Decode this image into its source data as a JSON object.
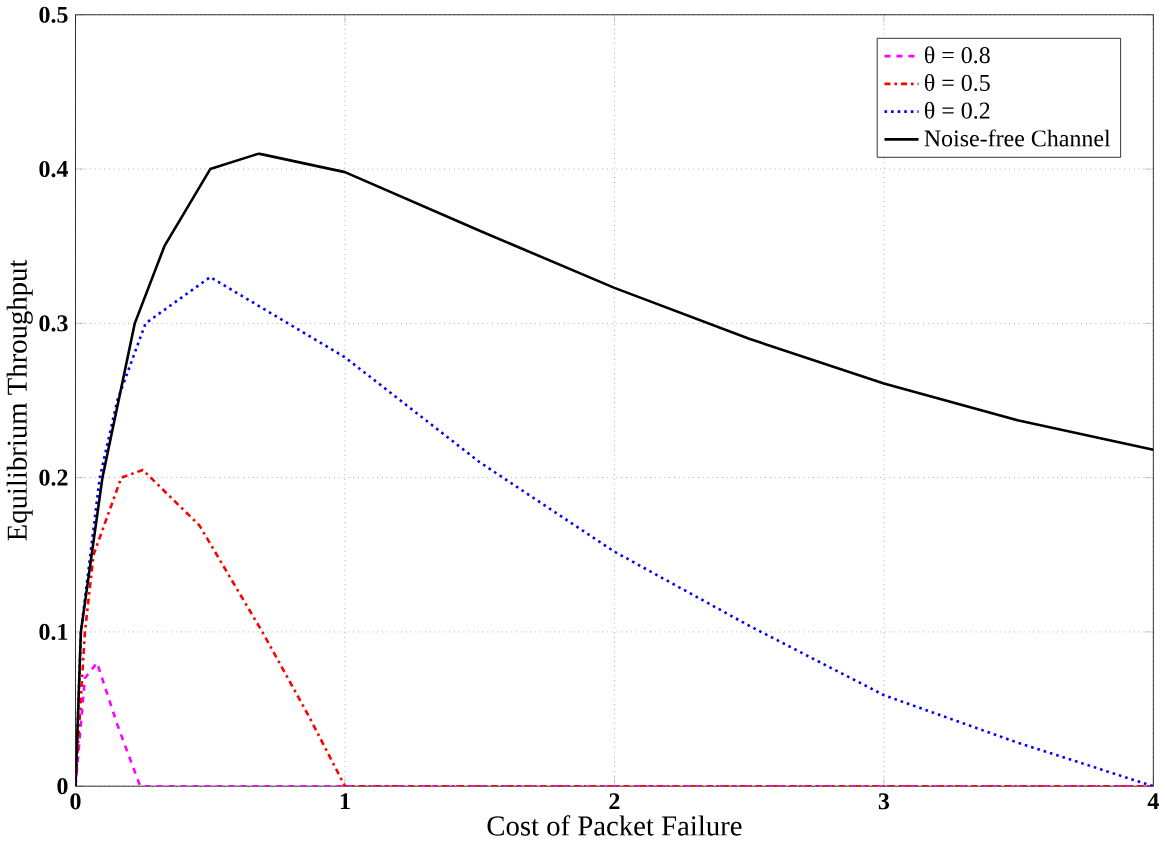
{
  "chart_data": {
    "type": "line",
    "xlabel": "Cost of Packet Failure",
    "ylabel": "Equilibrium Throughput",
    "xlim": [
      0,
      4
    ],
    "ylim": [
      0,
      0.5
    ],
    "xticks": [
      0,
      1,
      2,
      3,
      4
    ],
    "yticks": [
      0,
      0.1,
      0.2,
      0.3,
      0.4,
      0.5
    ],
    "grid": true,
    "legend": "top right",
    "series": [
      {
        "name": "θ = 0.8",
        "color": "#ff00ff",
        "line_style": "dashed",
        "x": [
          0,
          0.035,
          0.08,
          0.155,
          0.24,
          1,
          2,
          3,
          4
        ],
        "values": [
          0,
          0.07,
          0.08,
          0.04,
          0,
          0,
          0,
          0,
          0
        ]
      },
      {
        "name": "θ = 0.5",
        "color": "#ff0000",
        "line_style": "dashdot",
        "x": [
          0,
          0.035,
          0.067,
          0.17,
          0.25,
          0.46,
          0.7,
          0.87,
          1,
          2,
          3,
          4
        ],
        "values": [
          0,
          0.1,
          0.15,
          0.2,
          0.205,
          0.169,
          0.098,
          0.044,
          0,
          0,
          0,
          0
        ]
      },
      {
        "name": "θ = 0.2",
        "color": "#0000ff",
        "line_style": "dotted",
        "x": [
          0,
          0.02,
          0.09,
          0.155,
          0.26,
          0.5,
          1,
          1.5,
          2,
          2.5,
          3,
          3.5,
          4
        ],
        "values": [
          0,
          0.1,
          0.2,
          0.25,
          0.3,
          0.33,
          0.278,
          0.21,
          0.152,
          0.104,
          0.059,
          0.028,
          0
        ]
      },
      {
        "name": "Noise-free Channel",
        "color": "#000000",
        "line_style": "solid",
        "x": [
          0,
          0.02,
          0.1,
          0.22,
          0.33,
          0.5,
          0.68,
          1,
          1.5,
          2,
          2.5,
          3,
          3.5,
          4
        ],
        "values": [
          0,
          0.1,
          0.2,
          0.3,
          0.35,
          0.4,
          0.41,
          0.398,
          0.36,
          0.323,
          0.29,
          0.261,
          0.237,
          0.218
        ]
      }
    ]
  }
}
